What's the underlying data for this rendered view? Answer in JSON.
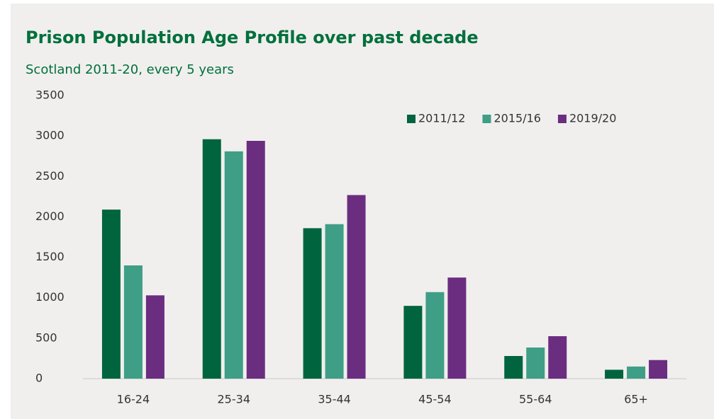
{
  "chart_data": {
    "type": "bar",
    "title": "Prison Population Age Profile over past decade",
    "subtitle": "Scotland 2011-20, every 5 years",
    "categories": [
      "16-24",
      "25-34",
      "35-44",
      "45-54",
      "55-64",
      "65+"
    ],
    "series": [
      {
        "name": "2011/12",
        "color": "#00643e",
        "values": [
          2090,
          2960,
          1860,
          900,
          280,
          110
        ]
      },
      {
        "name": "2015/16",
        "color": "#3f9e86",
        "values": [
          1400,
          2810,
          1910,
          1070,
          385,
          150
        ]
      },
      {
        "name": "2019/20",
        "color": "#6b2d80",
        "values": [
          1030,
          2940,
          2270,
          1250,
          525,
          230
        ]
      }
    ],
    "ylim": [
      0,
      3500
    ],
    "yticks": [
      0,
      500,
      1000,
      1500,
      2000,
      2500,
      3000,
      3500
    ],
    "grid": false,
    "legend": "top-right"
  }
}
